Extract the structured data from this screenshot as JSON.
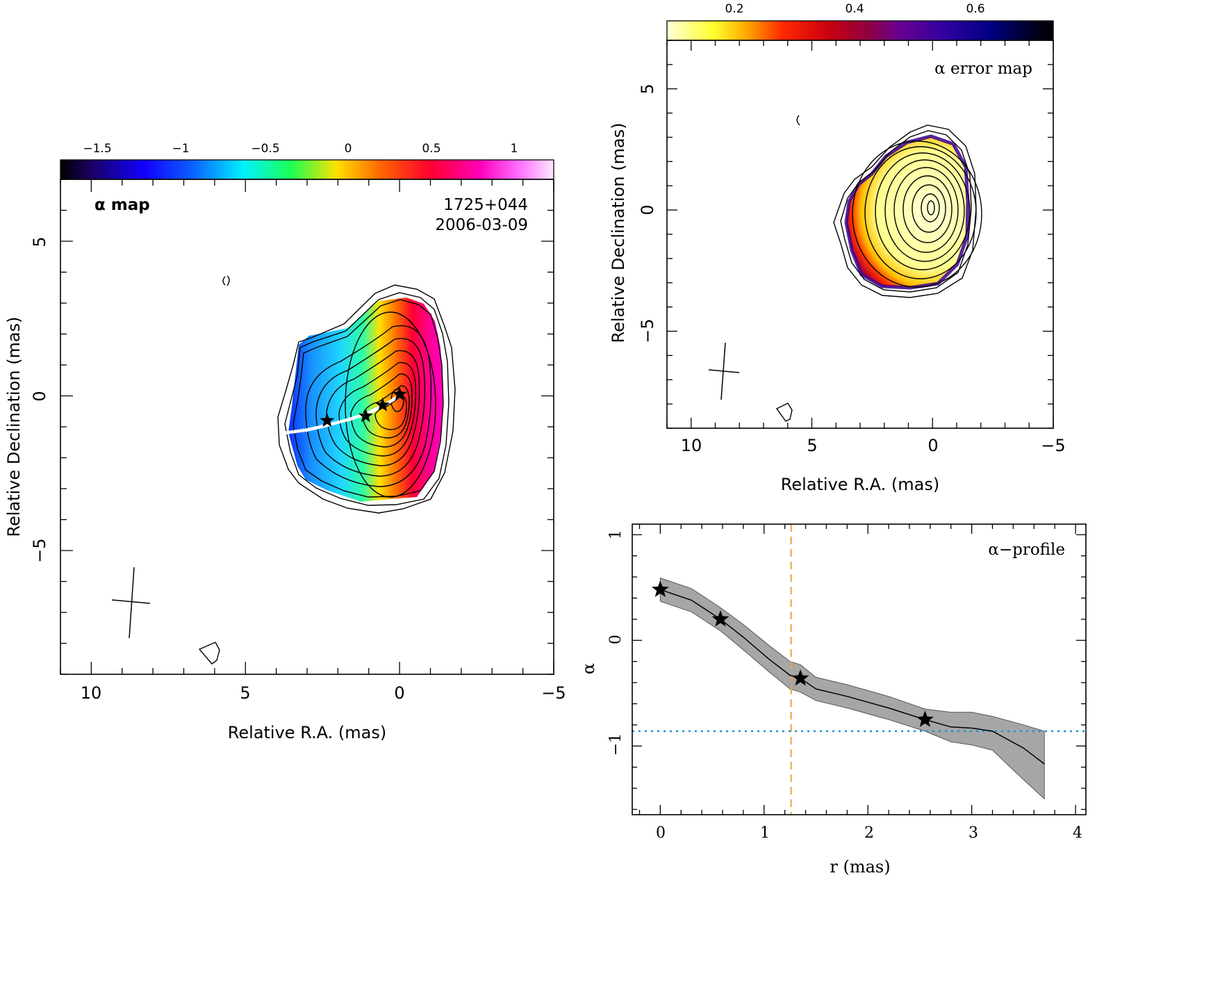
{
  "alpha_map": {
    "label": "α map",
    "source": "1725+044",
    "date": "2006-03-09",
    "colorbar_ticks": [
      "−1.5",
      "−1",
      "−0.5",
      "0",
      "0.5",
      "1"
    ],
    "xlabel": "Relative R.A. (mas)",
    "ylabel": "Relative Declination (mas)",
    "x_ticks": [
      "10",
      "5",
      "0",
      "−5"
    ],
    "y_ticks": [
      "5",
      "0",
      "−5"
    ]
  },
  "error_map": {
    "label": "α error map",
    "colorbar_ticks": [
      "0.2",
      "0.4",
      "0.6"
    ],
    "xlabel": "Relative R.A. (mas)",
    "ylabel": "Relative Declination (mas)",
    "x_ticks": [
      "10",
      "5",
      "0",
      "−5"
    ],
    "y_ticks": [
      "5",
      "0",
      "−5"
    ]
  },
  "profile": {
    "label": "α−profile",
    "xlabel": "r (mas)",
    "ylabel": "α",
    "x_ticks": [
      "0",
      "1",
      "2",
      "3",
      "4"
    ],
    "y_ticks": [
      "1",
      "0",
      "−1"
    ]
  },
  "chart_data": [
    {
      "type": "heatmap",
      "panel": "spectral index map",
      "title": "α map",
      "annotation": [
        "1725+044",
        "2006-03-09"
      ],
      "xlabel": "Relative R.A. (mas)",
      "ylabel": "Relative Declination (mas)",
      "xlim": [
        11,
        -5
      ],
      "ylim": [
        -9,
        7
      ],
      "colorbar": {
        "range": [
          -1.75,
          1.25
        ],
        "ticks": [
          -1.5,
          -1,
          -0.5,
          0,
          0.5,
          1
        ],
        "colormap": "black-blue-cyan-green-yellow-red-magenta-white"
      },
      "alpha_gradient_along_RA": [
        {
          "ra": 4,
          "alpha": -1.3
        },
        {
          "ra": 3,
          "alpha": -0.95
        },
        {
          "ra": 2,
          "alpha": -0.65
        },
        {
          "ra": 1,
          "alpha": -0.1
        },
        {
          "ra": 0,
          "alpha": 0.6
        },
        {
          "ra": -1,
          "alpha": 1.0
        }
      ],
      "ridge_stars": [
        {
          "ra": 0.0,
          "dec": 0.05
        },
        {
          "ra": 0.55,
          "dec": -0.3
        },
        {
          "ra": 1.1,
          "dec": -0.65
        },
        {
          "ra": 2.35,
          "dec": -0.8
        }
      ],
      "ridge_line": [
        {
          "ra": 3.75,
          "dec": -1.2
        },
        {
          "ra": 3.0,
          "dec": -1.1
        },
        {
          "ra": 2.35,
          "dec": -0.95
        },
        {
          "ra": 1.6,
          "dec": -0.75
        },
        {
          "ra": 1.0,
          "dec": -0.55
        },
        {
          "ra": 0.5,
          "dec": -0.3
        },
        {
          "ra": 0.0,
          "dec": 0.0
        }
      ],
      "contours_peak": {
        "ra": 0.0,
        "dec": 0.0
      },
      "contour_levels": 12
    },
    {
      "type": "heatmap",
      "panel": "spectral index error map",
      "title": "α error map",
      "xlabel": "Relative R.A. (mas)",
      "ylabel": "Relative Declination (mas)",
      "xlim": [
        11,
        -5
      ],
      "ylim": [
        -9,
        7
      ],
      "colorbar": {
        "range": [
          0.1,
          0.7
        ],
        "ticks": [
          0.2,
          0.4,
          0.6
        ],
        "colormap": "yellow-red-purple-blue-black"
      }
    },
    {
      "type": "line",
      "panel": "alpha profile",
      "title": "α−profile",
      "xlabel": "r (mas)",
      "ylabel": "α",
      "xlim": [
        -0.27,
        4.1
      ],
      "ylim": [
        -1.65,
        1.1
      ],
      "x": [
        0.0,
        0.3,
        0.58,
        0.8,
        1.05,
        1.25,
        1.35,
        1.5,
        1.8,
        2.2,
        2.55,
        2.8,
        3.0,
        3.2,
        3.5,
        3.7
      ],
      "series": [
        {
          "values": [
            0.48,
            0.38,
            0.2,
            0.03,
            -0.18,
            -0.33,
            -0.36,
            -0.46,
            -0.53,
            -0.64,
            -0.75,
            -0.82,
            -0.83,
            -0.86,
            -1.02,
            -1.17
          ],
          "lower": [
            0.37,
            0.27,
            0.09,
            -0.09,
            -0.3,
            -0.46,
            -0.49,
            -0.57,
            -0.64,
            -0.75,
            -0.86,
            -0.96,
            -0.99,
            -1.04,
            -1.32,
            -1.5
          ],
          "upper": [
            0.59,
            0.49,
            0.31,
            0.15,
            -0.05,
            -0.2,
            -0.23,
            -0.35,
            -0.42,
            -0.53,
            -0.65,
            -0.68,
            -0.68,
            -0.72,
            -0.8,
            -0.86
          ]
        }
      ],
      "stars": [
        {
          "x": 0.0,
          "y": 0.48
        },
        {
          "x": 0.58,
          "y": 0.2
        },
        {
          "x": 1.35,
          "y": -0.36
        },
        {
          "x": 2.55,
          "y": -0.75
        }
      ],
      "vertical_dashed_x": 1.26,
      "horizontal_dotted_y": -0.86
    }
  ]
}
